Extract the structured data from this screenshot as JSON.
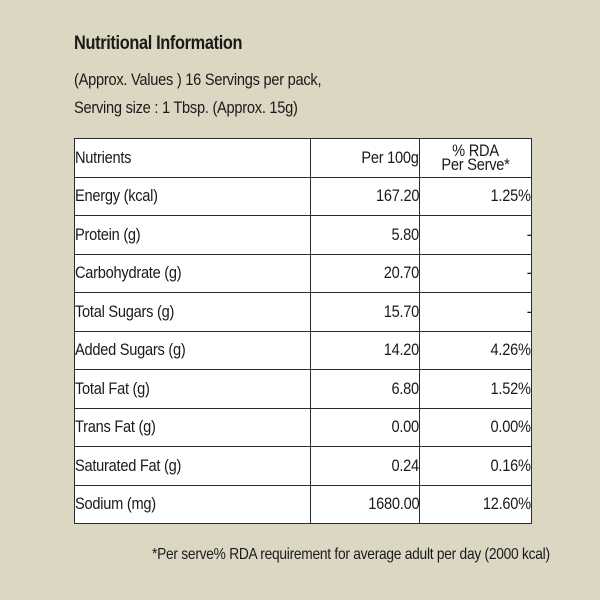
{
  "header": {
    "title": "Nutritional Information",
    "line1": "(Approx. Values ) 16 Servings per pack,",
    "line2": "Serving size : 1 Tbsp. (Approx. 15g)"
  },
  "table": {
    "columns": {
      "nutrients": "Nutrients",
      "per100g": "Per 100g",
      "rda_line1": "% RDA",
      "rda_line2": "Per Serve*"
    },
    "rows": [
      {
        "name": "Energy (kcal)",
        "per100g": "167.20",
        "rda": "1.25%"
      },
      {
        "name": "Protein (g)",
        "per100g": "5.80",
        "rda": "-"
      },
      {
        "name": "Carbohydrate (g)",
        "per100g": "20.70",
        "rda": "-"
      },
      {
        "name": "Total Sugars (g)",
        "per100g": "15.70",
        "rda": "-"
      },
      {
        "name": "Added Sugars (g)",
        "per100g": "14.20",
        "rda": "4.26%"
      },
      {
        "name": "Total Fat (g)",
        "per100g": "6.80",
        "rda": "1.52%"
      },
      {
        "name": "Trans Fat (g)",
        "per100g": "0.00",
        "rda": "0.00%"
      },
      {
        "name": "Saturated Fat (g)",
        "per100g": "0.24",
        "rda": "0.16%"
      },
      {
        "name": "Sodium (mg)",
        "per100g": "1680.00",
        "rda": "12.60%"
      }
    ]
  },
  "footnote": "*Per serve% RDA requirement for average adult per day (2000 kcal)"
}
